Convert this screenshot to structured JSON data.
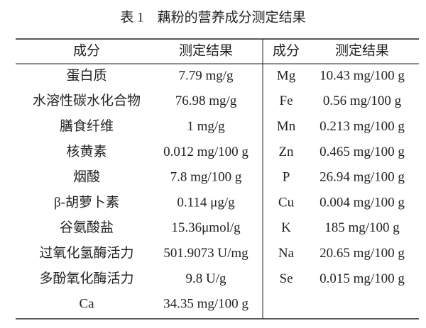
{
  "title": "表 1　藕粉的营养成分测定结果",
  "table": {
    "header": [
      "成分",
      "测定结果",
      "成分",
      "测定结果"
    ],
    "rows": [
      [
        "蛋白质",
        "7.79 mg/g",
        "Mg",
        "10.43 mg/100 g"
      ],
      [
        "水溶性碳水化合物",
        "76.98 mg/g",
        "Fe",
        "0.56 mg/100 g"
      ],
      [
        "膳食纤维",
        "1 mg/g",
        "Mn",
        "0.213 mg/100 g"
      ],
      [
        "核黄素",
        "0.012 mg/100 g",
        "Zn",
        "0.465 mg/100 g"
      ],
      [
        "烟酸",
        "7.8 mg/100 g",
        "P",
        "26.94 mg/100 g"
      ],
      [
        "β-胡萝卜素",
        "0.114 μg/g",
        "Cu",
        "0.004 mg/100 g"
      ],
      [
        "谷氨酸盐",
        "15.36μmol/g",
        "K",
        "185 mg/100 g"
      ],
      [
        "过氧化氢酶活力",
        "501.9073 U/mg",
        "Na",
        "20.65 mg/100 g"
      ],
      [
        "多酚氧化酶活力",
        "9.8 U/g",
        "Se",
        "0.015 mg/100 g"
      ],
      [
        "Ca",
        "34.35 mg/100 g"
      ]
    ]
  }
}
